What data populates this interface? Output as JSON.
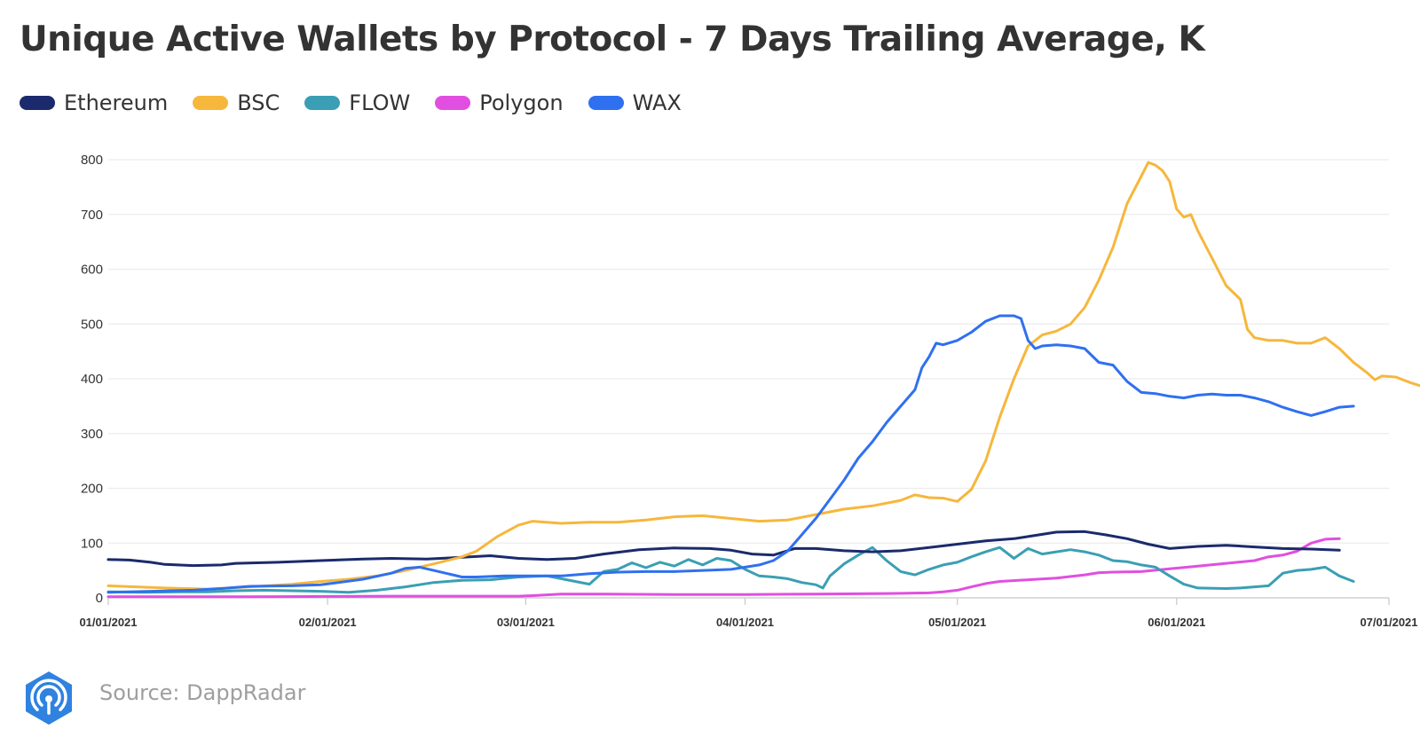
{
  "title": "Unique Active Wallets by Protocol - 7 Days Trailing Average, K",
  "source": "Source: DappRadar",
  "logo_icon": "dappradar-radar-icon",
  "colors": {
    "grid": "#ececec",
    "axis": "#c8c8c8",
    "tick_text": "#333333"
  },
  "chart_data": {
    "type": "line",
    "title": "Unique Active Wallets by Protocol - 7 Days Trailing Average, K",
    "xlabel": "",
    "ylabel": "",
    "ylim": [
      0,
      800
    ],
    "y_ticks": [
      0,
      100,
      200,
      300,
      400,
      500,
      600,
      700,
      800
    ],
    "x_ticks": [
      {
        "day": 0,
        "label": "01/01/2021"
      },
      {
        "day": 31,
        "label": "02/01/2021"
      },
      {
        "day": 59,
        "label": "03/01/2021"
      },
      {
        "day": 90,
        "label": "04/01/2021"
      },
      {
        "day": 120,
        "label": "05/01/2021"
      },
      {
        "day": 151,
        "label": "06/01/2021"
      },
      {
        "day": 181,
        "label": "07/01/2021"
      }
    ],
    "x_range_days": [
      0,
      181
    ],
    "grid": "horizontal",
    "legend_position": "top-left",
    "series": [
      {
        "name": "Ethereum",
        "color": "#1a2a6c",
        "points": [
          [
            0,
            70
          ],
          [
            3,
            69
          ],
          [
            6,
            65
          ],
          [
            8,
            61
          ],
          [
            12,
            59
          ],
          [
            16,
            60
          ],
          [
            18,
            63
          ],
          [
            24,
            65
          ],
          [
            30,
            68
          ],
          [
            36,
            71
          ],
          [
            40,
            72
          ],
          [
            45,
            71
          ],
          [
            50,
            74
          ],
          [
            54,
            77
          ],
          [
            58,
            72
          ],
          [
            62,
            70
          ],
          [
            66,
            72
          ],
          [
            70,
            80
          ],
          [
            75,
            88
          ],
          [
            80,
            91
          ],
          [
            85,
            90
          ],
          [
            88,
            87
          ],
          [
            91,
            80
          ],
          [
            94,
            78
          ],
          [
            97,
            90
          ],
          [
            100,
            90
          ],
          [
            104,
            86
          ],
          [
            108,
            84
          ],
          [
            112,
            86
          ],
          [
            116,
            92
          ],
          [
            120,
            98
          ],
          [
            124,
            104
          ],
          [
            128,
            108
          ],
          [
            131,
            114
          ],
          [
            134,
            120
          ],
          [
            138,
            121
          ],
          [
            141,
            115
          ],
          [
            144,
            108
          ],
          [
            147,
            98
          ],
          [
            150,
            90
          ],
          [
            154,
            94
          ],
          [
            158,
            96
          ],
          [
            162,
            93
          ],
          [
            166,
            90
          ],
          [
            170,
            89
          ],
          [
            174,
            87
          ]
        ]
      },
      {
        "name": "BSC",
        "color": "#f6b73c",
        "points": [
          [
            0,
            22
          ],
          [
            4,
            20
          ],
          [
            8,
            18
          ],
          [
            14,
            16
          ],
          [
            20,
            20
          ],
          [
            26,
            25
          ],
          [
            30,
            30
          ],
          [
            34,
            34
          ],
          [
            38,
            40
          ],
          [
            42,
            50
          ],
          [
            46,
            62
          ],
          [
            50,
            75
          ],
          [
            52,
            85
          ],
          [
            55,
            112
          ],
          [
            58,
            133
          ],
          [
            60,
            140
          ],
          [
            64,
            136
          ],
          [
            68,
            138
          ],
          [
            72,
            138
          ],
          [
            76,
            142
          ],
          [
            80,
            148
          ],
          [
            84,
            150
          ],
          [
            88,
            145
          ],
          [
            92,
            140
          ],
          [
            96,
            142
          ],
          [
            100,
            152
          ],
          [
            104,
            162
          ],
          [
            108,
            168
          ],
          [
            112,
            178
          ],
          [
            114,
            188
          ],
          [
            116,
            183
          ],
          [
            118,
            182
          ],
          [
            120,
            176
          ],
          [
            122,
            198
          ],
          [
            124,
            250
          ],
          [
            126,
            330
          ],
          [
            128,
            400
          ],
          [
            130,
            460
          ],
          [
            132,
            480
          ],
          [
            134,
            487
          ],
          [
            136,
            500
          ],
          [
            138,
            530
          ],
          [
            140,
            580
          ],
          [
            142,
            640
          ],
          [
            144,
            720
          ],
          [
            146,
            770
          ],
          [
            147,
            795
          ],
          [
            148,
            790
          ],
          [
            149,
            780
          ],
          [
            150,
            760
          ],
          [
            151,
            710
          ],
          [
            152,
            695
          ],
          [
            153,
            700
          ],
          [
            154,
            670
          ],
          [
            156,
            620
          ],
          [
            158,
            570
          ],
          [
            160,
            545
          ],
          [
            161,
            490
          ],
          [
            162,
            475
          ],
          [
            164,
            470
          ],
          [
            166,
            470
          ],
          [
            168,
            465
          ],
          [
            170,
            465
          ],
          [
            172,
            475
          ],
          [
            174,
            455
          ],
          [
            176,
            430
          ],
          [
            178,
            410
          ],
          [
            179,
            398
          ],
          [
            180,
            405
          ],
          [
            182,
            403
          ],
          [
            184,
            393
          ],
          [
            186,
            385
          ]
        ]
      },
      {
        "name": "FLOW",
        "color": "#3a9fb4",
        "points": [
          [
            0,
            11
          ],
          [
            5,
            10
          ],
          [
            10,
            11
          ],
          [
            14,
            11
          ],
          [
            18,
            13
          ],
          [
            22,
            14
          ],
          [
            26,
            13
          ],
          [
            30,
            12
          ],
          [
            34,
            10
          ],
          [
            38,
            14
          ],
          [
            42,
            20
          ],
          [
            46,
            28
          ],
          [
            50,
            32
          ],
          [
            54,
            33
          ],
          [
            58,
            38
          ],
          [
            62,
            40
          ],
          [
            66,
            30
          ],
          [
            68,
            25
          ],
          [
            70,
            48
          ],
          [
            72,
            52
          ],
          [
            74,
            64
          ],
          [
            76,
            55
          ],
          [
            78,
            65
          ],
          [
            80,
            58
          ],
          [
            82,
            70
          ],
          [
            84,
            60
          ],
          [
            86,
            72
          ],
          [
            88,
            68
          ],
          [
            90,
            52
          ],
          [
            92,
            40
          ],
          [
            94,
            38
          ],
          [
            96,
            35
          ],
          [
            98,
            28
          ],
          [
            100,
            24
          ],
          [
            101,
            18
          ],
          [
            102,
            40
          ],
          [
            104,
            62
          ],
          [
            106,
            78
          ],
          [
            108,
            92
          ],
          [
            110,
            68
          ],
          [
            112,
            48
          ],
          [
            114,
            42
          ],
          [
            116,
            52
          ],
          [
            118,
            60
          ],
          [
            120,
            65
          ],
          [
            122,
            75
          ],
          [
            124,
            84
          ],
          [
            126,
            92
          ],
          [
            128,
            72
          ],
          [
            130,
            90
          ],
          [
            132,
            80
          ],
          [
            134,
            84
          ],
          [
            136,
            88
          ],
          [
            138,
            84
          ],
          [
            140,
            78
          ],
          [
            142,
            68
          ],
          [
            144,
            66
          ],
          [
            146,
            60
          ],
          [
            148,
            56
          ],
          [
            150,
            40
          ],
          [
            152,
            25
          ],
          [
            154,
            18
          ],
          [
            158,
            17
          ],
          [
            160,
            18
          ],
          [
            162,
            20
          ],
          [
            164,
            22
          ],
          [
            166,
            45
          ],
          [
            168,
            50
          ],
          [
            170,
            52
          ],
          [
            172,
            56
          ],
          [
            174,
            40
          ],
          [
            176,
            30
          ]
        ]
      },
      {
        "name": "Polygon",
        "color": "#e04fe0",
        "points": [
          [
            0,
            2
          ],
          [
            20,
            2
          ],
          [
            40,
            3
          ],
          [
            58,
            3
          ],
          [
            60,
            4
          ],
          [
            64,
            7
          ],
          [
            70,
            7
          ],
          [
            80,
            6
          ],
          [
            90,
            6
          ],
          [
            100,
            7
          ],
          [
            110,
            8
          ],
          [
            116,
            9
          ],
          [
            118,
            11
          ],
          [
            120,
            14
          ],
          [
            122,
            20
          ],
          [
            124,
            26
          ],
          [
            126,
            30
          ],
          [
            130,
            33
          ],
          [
            134,
            36
          ],
          [
            138,
            42
          ],
          [
            140,
            46
          ],
          [
            142,
            47
          ],
          [
            146,
            48
          ],
          [
            150,
            53
          ],
          [
            154,
            58
          ],
          [
            158,
            63
          ],
          [
            162,
            68
          ],
          [
            164,
            75
          ],
          [
            166,
            78
          ],
          [
            168,
            85
          ],
          [
            170,
            100
          ],
          [
            172,
            107
          ],
          [
            174,
            108
          ]
        ]
      },
      {
        "name": "WAX",
        "color": "#2f70f0",
        "points": [
          [
            0,
            10
          ],
          [
            6,
            12
          ],
          [
            12,
            14
          ],
          [
            16,
            17
          ],
          [
            20,
            21
          ],
          [
            26,
            22
          ],
          [
            30,
            24
          ],
          [
            32,
            27
          ],
          [
            36,
            34
          ],
          [
            40,
            45
          ],
          [
            42,
            54
          ],
          [
            44,
            56
          ],
          [
            46,
            50
          ],
          [
            48,
            44
          ],
          [
            50,
            38
          ],
          [
            52,
            38
          ],
          [
            56,
            40
          ],
          [
            60,
            40
          ],
          [
            64,
            40
          ],
          [
            68,
            44
          ],
          [
            72,
            47
          ],
          [
            76,
            48
          ],
          [
            80,
            48
          ],
          [
            84,
            50
          ],
          [
            88,
            52
          ],
          [
            92,
            60
          ],
          [
            94,
            68
          ],
          [
            96,
            85
          ],
          [
            98,
            115
          ],
          [
            100,
            145
          ],
          [
            102,
            180
          ],
          [
            104,
            215
          ],
          [
            106,
            255
          ],
          [
            108,
            285
          ],
          [
            110,
            320
          ],
          [
            112,
            350
          ],
          [
            114,
            380
          ],
          [
            115,
            420
          ],
          [
            116,
            440
          ],
          [
            117,
            465
          ],
          [
            118,
            462
          ],
          [
            120,
            470
          ],
          [
            122,
            485
          ],
          [
            124,
            505
          ],
          [
            126,
            515
          ],
          [
            128,
            515
          ],
          [
            129,
            510
          ],
          [
            130,
            470
          ],
          [
            131,
            455
          ],
          [
            132,
            460
          ],
          [
            134,
            462
          ],
          [
            136,
            460
          ],
          [
            138,
            455
          ],
          [
            140,
            430
          ],
          [
            142,
            425
          ],
          [
            144,
            395
          ],
          [
            146,
            375
          ],
          [
            148,
            373
          ],
          [
            150,
            368
          ],
          [
            152,
            365
          ],
          [
            154,
            370
          ],
          [
            156,
            372
          ],
          [
            158,
            370
          ],
          [
            160,
            370
          ],
          [
            162,
            365
          ],
          [
            164,
            358
          ],
          [
            166,
            348
          ],
          [
            168,
            340
          ],
          [
            170,
            333
          ],
          [
            172,
            340
          ],
          [
            174,
            348
          ],
          [
            176,
            350
          ]
        ]
      }
    ]
  }
}
